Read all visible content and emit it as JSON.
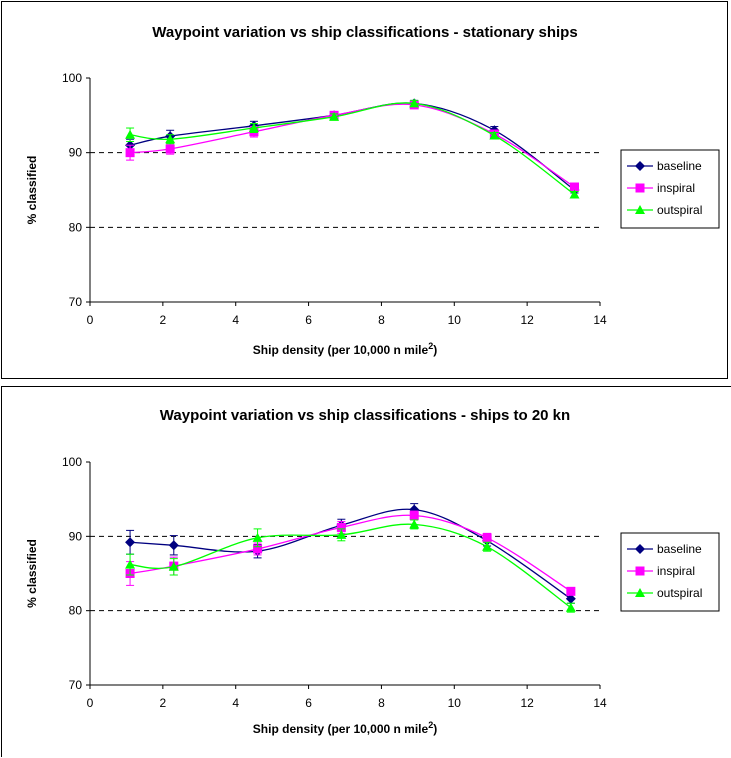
{
  "chart_data": [
    {
      "type": "line",
      "title": "Waypoint variation vs ship classifications - stationary ships",
      "xlabel": "Ship density (per 10,000 n mile",
      "xlabel_sup": "2",
      "xlabel_end": ")",
      "ylabel": "% classified",
      "xlim": [
        0,
        14
      ],
      "ylim": [
        70,
        100
      ],
      "xticks": [
        "0",
        "2",
        "4",
        "6",
        "8",
        "10",
        "12",
        "14"
      ],
      "yticks": [
        "70",
        "80",
        "90",
        "100"
      ],
      "gridlines": [
        80,
        90
      ],
      "legend_position": "right",
      "series": [
        {
          "name": "baseline",
          "color": "#000080",
          "marker": "diamond",
          "x": [
            1.1,
            2.2,
            4.5,
            6.7,
            8.9,
            11.1,
            13.3
          ],
          "y": [
            91.0,
            92.2,
            93.6,
            95.0,
            96.6,
            93.0,
            85.0
          ],
          "err": [
            0.8,
            0.8,
            0.6,
            0.3,
            0.4,
            0.5,
            0.4
          ]
        },
        {
          "name": "inspiral",
          "color": "#ff00ff",
          "marker": "square",
          "x": [
            1.1,
            2.2,
            4.5,
            6.7,
            8.9,
            11.1,
            13.3
          ],
          "y": [
            90.0,
            90.5,
            92.8,
            95.0,
            96.4,
            92.5,
            85.4
          ],
          "err": [
            1.0,
            0.7,
            0.7,
            0.3,
            0.4,
            0.4,
            0.4
          ]
        },
        {
          "name": "outspiral",
          "color": "#00ff00",
          "marker": "triangle",
          "x": [
            1.1,
            2.2,
            4.5,
            6.7,
            8.9,
            11.1,
            13.3
          ],
          "y": [
            92.4,
            91.8,
            93.3,
            94.8,
            96.6,
            92.3,
            84.4
          ],
          "err": [
            0.9,
            0.6,
            0.6,
            0.4,
            0.4,
            0.4,
            0.4
          ]
        }
      ]
    },
    {
      "type": "line",
      "title": "Waypoint variation vs ship classifications - ships to 20 kn",
      "xlabel": "Ship density (per 10,000 n mile",
      "xlabel_sup": "2",
      "xlabel_end": ")",
      "ylabel": "% classified",
      "xlim": [
        0,
        14
      ],
      "ylim": [
        70,
        100
      ],
      "xticks": [
        "0",
        "2",
        "4",
        "6",
        "8",
        "10",
        "12",
        "14"
      ],
      "yticks": [
        "70",
        "80",
        "90",
        "100"
      ],
      "gridlines": [
        80,
        90
      ],
      "legend_position": "right",
      "series": [
        {
          "name": "baseline",
          "color": "#000080",
          "marker": "diamond",
          "x": [
            1.1,
            2.3,
            4.6,
            6.9,
            8.9,
            10.9,
            13.2
          ],
          "y": [
            89.2,
            88.8,
            88.0,
            91.5,
            93.6,
            89.4,
            81.6
          ],
          "err": [
            1.6,
            1.3,
            0.9,
            0.8,
            0.8,
            0.7,
            0.6
          ]
        },
        {
          "name": "inspiral",
          "color": "#ff00ff",
          "marker": "square",
          "x": [
            1.1,
            2.3,
            4.6,
            6.9,
            8.9,
            10.9,
            13.2
          ],
          "y": [
            85.0,
            86.0,
            88.3,
            91.2,
            92.8,
            89.8,
            82.6
          ],
          "err": [
            1.6,
            1.2,
            0.8,
            0.8,
            0.6,
            0.6,
            0.5
          ]
        },
        {
          "name": "outspiral",
          "color": "#00ff00",
          "marker": "triangle",
          "x": [
            1.1,
            2.3,
            4.6,
            6.9,
            8.9,
            10.9,
            13.2
          ],
          "y": [
            86.2,
            85.9,
            89.8,
            90.2,
            91.6,
            88.6,
            80.4
          ],
          "err": [
            1.4,
            1.1,
            1.2,
            0.8,
            0.6,
            0.6,
            0.6
          ]
        }
      ]
    }
  ]
}
